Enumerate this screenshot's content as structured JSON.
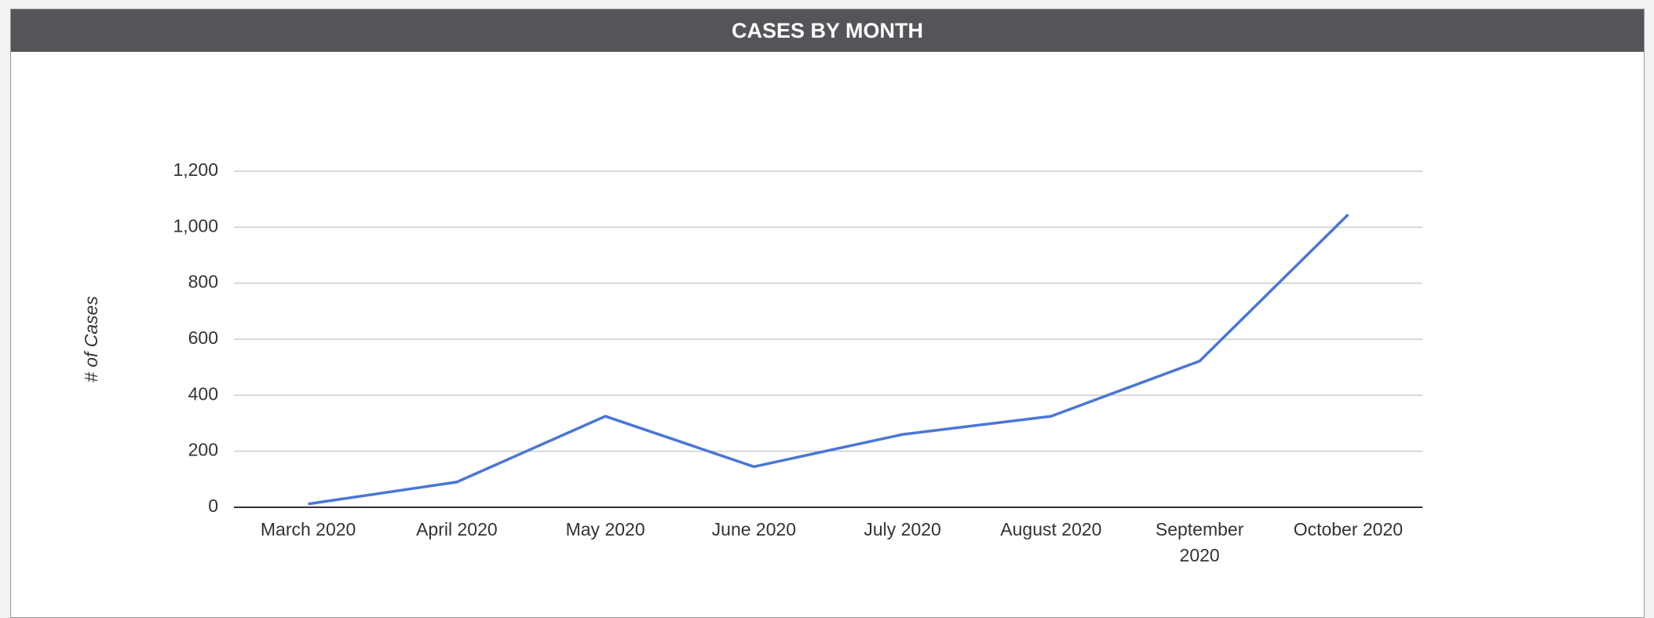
{
  "chart_data": {
    "type": "line",
    "title": "CASES BY MONTH",
    "y_label": "# of Cases",
    "categories": [
      "March 2020",
      "April 2020",
      "May 2020",
      "June 2020",
      "July 2020",
      "August 2020",
      "September 2020",
      "October 2020"
    ],
    "series": [
      {
        "name": "Cases",
        "color": "#4a76d6",
        "values": [
          12,
          90,
          325,
          145,
          260,
          325,
          522,
          1045
        ]
      }
    ],
    "ylim": [
      0,
      1200
    ],
    "yticks": [
      0,
      200,
      400,
      600,
      800,
      {
        "value": 1000,
        "label": "1,000"
      },
      {
        "value": 1200,
        "label": "1,200"
      }
    ],
    "grid": true
  }
}
